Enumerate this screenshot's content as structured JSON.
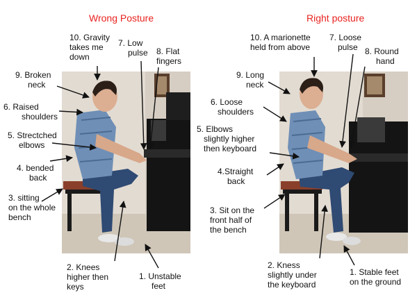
{
  "left_panel": {
    "title": "Wrong Posture",
    "labels": {
      "gravity": [
        "10. Gravity",
        "takes me",
        "down"
      ],
      "low_pulse": [
        "7. Low",
        "pulse"
      ],
      "flat_fingers": [
        "8. Flat",
        "fingers"
      ],
      "broken_neck": [
        "9. Broken",
        "neck"
      ],
      "raised_shoulders": [
        "6. Raised",
        "shoulders"
      ],
      "stretched_elbows": [
        "5. Strectched",
        "elbows"
      ],
      "bended_back": [
        "4. bended",
        "back"
      ],
      "whole_bench": [
        "3. sitting",
        "on the whole",
        "bench"
      ],
      "knees": [
        "2. Knees",
        "higher then",
        "keys"
      ],
      "unstable_feet": [
        "1. Unstable",
        "feet"
      ]
    }
  },
  "right_panel": {
    "title": "Right posture",
    "labels": {
      "marionette": [
        "10. A marionette",
        "held from above"
      ],
      "loose_pulse": [
        "7. Loose",
        "pulse"
      ],
      "round_hand": [
        "8. Round",
        "hand"
      ],
      "long_neck": [
        "9. Long",
        "neck"
      ],
      "loose_shoulders": [
        "6. Loose",
        "shoulders"
      ],
      "elbows": [
        "5. Elbows",
        "slightly higher",
        "then keyboard"
      ],
      "straight_back": [
        "4.Straight",
        "back"
      ],
      "front_half": [
        "3. Sit on the",
        "front half of",
        "the bench"
      ],
      "knees": [
        "2. Kness",
        "slightly under",
        "the keyboard"
      ],
      "stable_feet": [
        "1. Stable feet",
        "on the ground"
      ]
    }
  },
  "colors": {
    "title": "#e8231f",
    "text": "#111111",
    "arrow": "#111111"
  }
}
